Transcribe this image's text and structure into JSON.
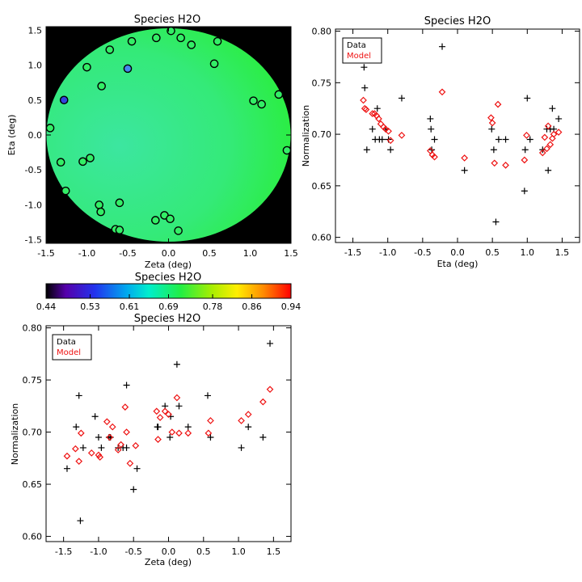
{
  "colors": {
    "data_marker": "#000000",
    "model_marker": "#ee1111",
    "map_background": "#000000",
    "map_fill": "#33ee66"
  },
  "chart_data": [
    {
      "id": "map",
      "type": "scatter",
      "title": "Species H2O",
      "xlabel": "Zeta (deg)",
      "ylabel": "Eta (deg)",
      "xlim": [
        -1.5,
        1.5
      ],
      "ylim": [
        -1.55,
        1.55
      ],
      "xticks": [
        "-1.5",
        "-1.0",
        "-0.5",
        "0.0",
        "0.5",
        "1.0",
        "1.5"
      ],
      "yticks": [
        "-1.5",
        "-1.0",
        "-0.5",
        "0.0",
        "0.5",
        "1.0",
        "1.5"
      ],
      "points": [
        {
          "zeta": 0.03,
          "eta": 1.49,
          "color": "#33ee66"
        },
        {
          "zeta": -0.15,
          "eta": 1.39,
          "color": "#33ee66"
        },
        {
          "zeta": 0.15,
          "eta": 1.39,
          "color": "#33ee66"
        },
        {
          "zeta": 0.28,
          "eta": 1.29,
          "color": "#33ee66"
        },
        {
          "zeta": 0.6,
          "eta": 1.34,
          "color": "#33ee66"
        },
        {
          "zeta": -0.45,
          "eta": 1.34,
          "color": "#33ee66"
        },
        {
          "zeta": -0.72,
          "eta": 1.22,
          "color": "#33ee66"
        },
        {
          "zeta": -0.5,
          "eta": 0.95,
          "color": "#4488ee"
        },
        {
          "zeta": -1.0,
          "eta": 0.97,
          "color": "#33ee66"
        },
        {
          "zeta": 0.56,
          "eta": 1.02,
          "color": "#33ee66"
        },
        {
          "zeta": -0.82,
          "eta": 0.7,
          "color": "#33ee66"
        },
        {
          "zeta": -1.28,
          "eta": 0.5,
          "color": "#3344dd"
        },
        {
          "zeta": 1.04,
          "eta": 0.49,
          "color": "#33ee66"
        },
        {
          "zeta": 1.14,
          "eta": 0.44,
          "color": "#33ee66"
        },
        {
          "zeta": 1.35,
          "eta": 0.58,
          "color": "#33ee66"
        },
        {
          "zeta": -1.45,
          "eta": 0.1,
          "color": "#33ee66"
        },
        {
          "zeta": 1.45,
          "eta": -0.22,
          "color": "#33ee66"
        },
        {
          "zeta": -1.32,
          "eta": -0.39,
          "color": "#33ee66"
        },
        {
          "zeta": -1.05,
          "eta": -0.38,
          "color": "#33ee66"
        },
        {
          "zeta": -0.96,
          "eta": -0.33,
          "color": "#33ee66"
        },
        {
          "zeta": -1.26,
          "eta": -0.8,
          "color": "#33ee66"
        },
        {
          "zeta": -0.85,
          "eta": -1.0,
          "color": "#33ee66"
        },
        {
          "zeta": -0.83,
          "eta": -1.1,
          "color": "#33ee66"
        },
        {
          "zeta": -0.6,
          "eta": -0.97,
          "color": "#33ee66"
        },
        {
          "zeta": -0.65,
          "eta": -1.35,
          "color": "#33ee66"
        },
        {
          "zeta": -0.6,
          "eta": -1.36,
          "color": "#33ee66"
        },
        {
          "zeta": -0.16,
          "eta": -1.22,
          "color": "#33ee66"
        },
        {
          "zeta": -0.05,
          "eta": -1.15,
          "color": "#33ee66"
        },
        {
          "zeta": 0.02,
          "eta": -1.2,
          "color": "#33ee66"
        },
        {
          "zeta": 0.12,
          "eta": -1.37,
          "color": "#33ee66"
        }
      ]
    },
    {
      "id": "eta-plot",
      "type": "scatter",
      "title": "Species H2O",
      "xlabel": "Eta (deg)",
      "ylabel": "Normalization",
      "xlim": [
        -1.75,
        1.75
      ],
      "ylim": [
        0.595,
        0.802
      ],
      "xticks": [
        "-1.5",
        "-1.0",
        "-0.5",
        "0.0",
        "0.5",
        "1.0",
        "1.5"
      ],
      "yticks": [
        "0.60",
        "0.65",
        "0.70",
        "0.75",
        "0.80"
      ],
      "legend": {
        "position": "top-left",
        "entries": [
          "Data",
          "Model"
        ]
      },
      "series": [
        {
          "name": "Data",
          "marker": "plus",
          "x": [
            -1.34,
            -1.33,
            -1.3,
            -1.22,
            -1.18,
            -1.15,
            -1.12,
            -1.08,
            -1.03,
            -0.99,
            -0.96,
            -0.8,
            -0.39,
            -0.38,
            -0.37,
            -0.33,
            -0.22,
            0.1,
            0.49,
            0.52,
            0.55,
            0.59,
            0.69,
            0.96,
            0.97,
            1.0,
            1.04,
            1.22,
            1.28,
            1.3,
            1.33,
            1.36,
            1.38,
            1.45
          ],
          "y": [
            0.765,
            0.745,
            0.685,
            0.705,
            0.695,
            0.725,
            0.695,
            0.695,
            0.705,
            0.695,
            0.685,
            0.735,
            0.715,
            0.705,
            0.685,
            0.695,
            0.785,
            0.665,
            0.705,
            0.685,
            0.615,
            0.695,
            0.695,
            0.645,
            0.685,
            0.735,
            0.695,
            0.685,
            0.705,
            0.665,
            0.705,
            0.725,
            0.705,
            0.715
          ]
        },
        {
          "name": "Model",
          "marker": "diamond",
          "x": [
            -1.35,
            -1.33,
            -1.31,
            -1.22,
            -1.19,
            -1.16,
            -1.13,
            -1.1,
            -1.06,
            -1.03,
            -0.99,
            -0.96,
            -0.8,
            -0.39,
            -0.36,
            -0.33,
            -0.22,
            0.1,
            0.48,
            0.5,
            0.53,
            0.58,
            0.69,
            0.96,
            0.99,
            1.22,
            1.25,
            1.28,
            1.3,
            1.33,
            1.36,
            1.38,
            1.45
          ],
          "y": [
            0.733,
            0.725,
            0.724,
            0.72,
            0.72,
            0.718,
            0.715,
            0.71,
            0.707,
            0.705,
            0.703,
            0.694,
            0.699,
            0.684,
            0.68,
            0.678,
            0.741,
            0.677,
            0.716,
            0.711,
            0.672,
            0.729,
            0.67,
            0.675,
            0.699,
            0.682,
            0.697,
            0.686,
            0.708,
            0.69,
            0.696,
            0.7,
            0.702
          ]
        }
      ]
    },
    {
      "id": "colorbar",
      "type": "heatmap",
      "title": "Species H2O",
      "range": [
        0.44,
        0.94
      ],
      "ticks": [
        "0.44",
        "0.53",
        "0.61",
        "0.69",
        "0.78",
        "0.86",
        "0.94"
      ]
    },
    {
      "id": "zeta-plot",
      "type": "scatter",
      "title": "Species H2O",
      "xlabel": "Zeta (deg)",
      "ylabel": "Normalization",
      "xlim": [
        -1.75,
        1.75
      ],
      "ylim": [
        0.595,
        0.802
      ],
      "xticks": [
        "-1.5",
        "-1.0",
        "-0.5",
        "0.0",
        "0.5",
        "1.0",
        "1.5"
      ],
      "yticks": [
        "0.60",
        "0.65",
        "0.70",
        "0.75",
        "0.80"
      ],
      "legend": {
        "position": "top-left",
        "entries": [
          "Data",
          "Model"
        ]
      },
      "series": [
        {
          "name": "Data",
          "marker": "plus",
          "x": [
            -1.45,
            -1.32,
            -1.28,
            -1.26,
            -1.22,
            -1.05,
            -1.0,
            -0.96,
            -0.85,
            -0.83,
            -0.72,
            -0.65,
            -0.6,
            -0.6,
            -0.5,
            -0.45,
            -0.16,
            -0.15,
            -0.05,
            0.02,
            0.03,
            0.12,
            0.15,
            0.28,
            0.56,
            0.6,
            1.04,
            1.14,
            1.35,
            1.45
          ],
          "y": [
            0.665,
            0.705,
            0.735,
            0.615,
            0.685,
            0.715,
            0.695,
            0.685,
            0.695,
            0.695,
            0.685,
            0.685,
            0.745,
            0.685,
            0.645,
            0.665,
            0.705,
            0.705,
            0.725,
            0.695,
            0.715,
            0.765,
            0.725,
            0.705,
            0.735,
            0.695,
            0.685,
            0.705,
            0.695,
            0.785
          ]
        },
        {
          "name": "Model",
          "marker": "diamond",
          "x": [
            -1.45,
            -1.33,
            -1.28,
            -1.25,
            -1.1,
            -1.0,
            -0.98,
            -0.88,
            -0.84,
            -0.8,
            -0.72,
            -0.68,
            -0.62,
            -0.6,
            -0.55,
            -0.47,
            -0.17,
            -0.15,
            -0.12,
            -0.05,
            0.0,
            0.05,
            0.12,
            0.15,
            0.28,
            0.57,
            0.6,
            1.04,
            1.14,
            1.35,
            1.45
          ],
          "y": [
            0.677,
            0.684,
            0.672,
            0.699,
            0.68,
            0.678,
            0.676,
            0.71,
            0.695,
            0.705,
            0.683,
            0.688,
            0.724,
            0.7,
            0.67,
            0.687,
            0.72,
            0.693,
            0.714,
            0.72,
            0.717,
            0.7,
            0.733,
            0.699,
            0.699,
            0.699,
            0.711,
            0.711,
            0.717,
            0.729,
            0.741
          ]
        }
      ]
    }
  ]
}
